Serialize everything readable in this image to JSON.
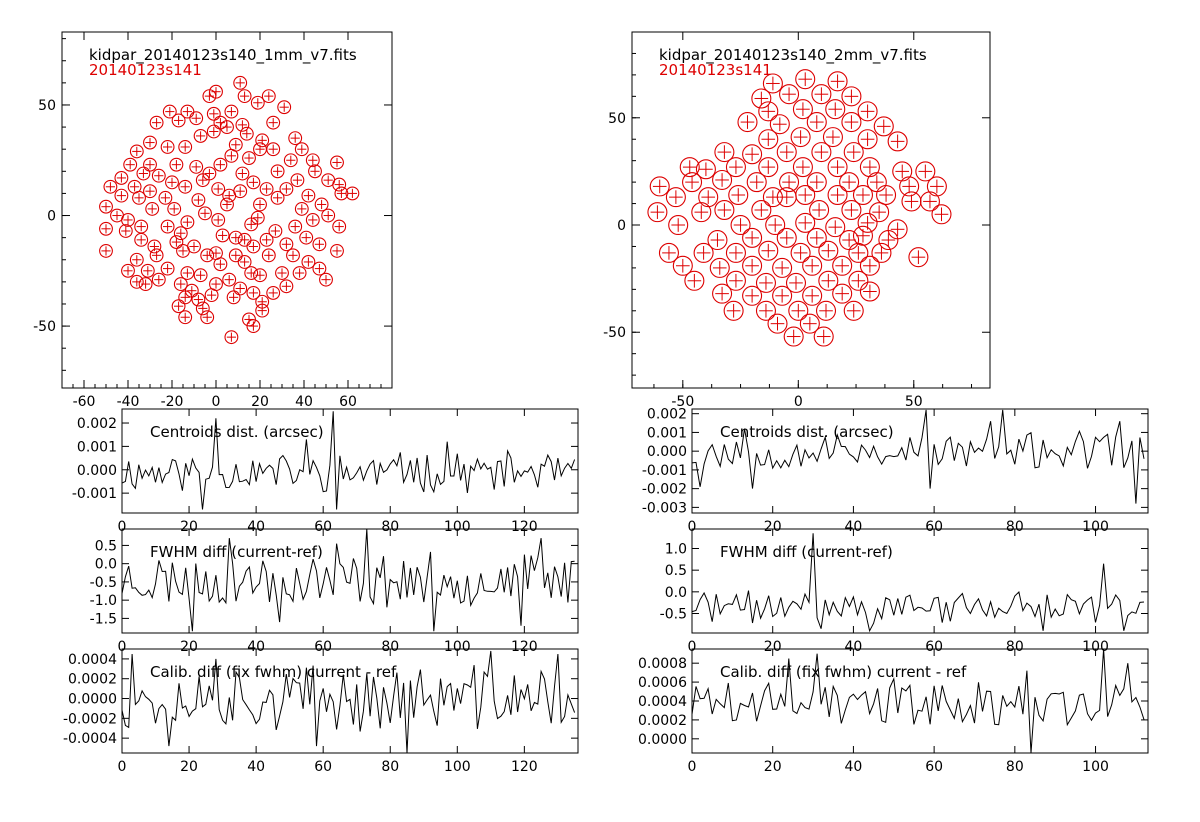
{
  "colors": {
    "axis": "#000000",
    "detector": "#dd0000",
    "line": "#000000",
    "background": "#ffffff"
  },
  "chart_data": [
    {
      "id": "map1",
      "type": "scatter",
      "title": "kidpar_20140123s140_1mm_v7.fits",
      "subtitle": "20140123s141",
      "xlim": [
        -70,
        80
      ],
      "ylim": [
        -78,
        83
      ],
      "xticks": [
        -60,
        -40,
        -20,
        0,
        20,
        40,
        60
      ],
      "yticks": [
        -50,
        0,
        50
      ],
      "marker_radius": 2.9,
      "points": [
        [
          11,
          60
        ],
        [
          0,
          56
        ],
        [
          -3,
          54
        ],
        [
          13,
          54
        ],
        [
          19,
          51
        ],
        [
          24,
          54
        ],
        [
          31,
          49
        ],
        [
          -21,
          47
        ],
        [
          -13,
          47
        ],
        [
          -9,
          44
        ],
        [
          -1,
          46
        ],
        [
          7,
          47
        ],
        [
          -27,
          42
        ],
        [
          -17,
          43
        ],
        [
          2,
          42
        ],
        [
          12,
          41
        ],
        [
          26,
          42
        ],
        [
          -30,
          33
        ],
        [
          -7,
          36
        ],
        [
          -1,
          38
        ],
        [
          5,
          40
        ],
        [
          14,
          37
        ],
        [
          21,
          34
        ],
        [
          36,
          35
        ],
        [
          -36,
          29
        ],
        [
          -22,
          31
        ],
        [
          -14,
          31
        ],
        [
          9,
          32
        ],
        [
          20,
          30
        ],
        [
          26,
          30
        ],
        [
          39,
          30
        ],
        [
          -39,
          23
        ],
        [
          -30,
          23
        ],
        [
          -18,
          23
        ],
        [
          -9,
          22
        ],
        [
          2,
          23
        ],
        [
          7,
          27
        ],
        [
          15,
          26
        ],
        [
          34,
          25
        ],
        [
          44,
          25
        ],
        [
          55,
          24
        ],
        [
          -43,
          17
        ],
        [
          -33,
          19
        ],
        [
          -26,
          18
        ],
        [
          -3,
          19
        ],
        [
          12,
          19
        ],
        [
          28,
          20
        ],
        [
          45,
          20
        ],
        [
          -48,
          13
        ],
        [
          -37,
          13
        ],
        [
          -20,
          15
        ],
        [
          -6,
          16
        ],
        [
          17,
          15
        ],
        [
          37,
          16
        ],
        [
          51,
          16
        ],
        [
          -43,
          9
        ],
        [
          -30,
          11
        ],
        [
          -14,
          13
        ],
        [
          1,
          12
        ],
        [
          23,
          12
        ],
        [
          32,
          12
        ],
        [
          56,
          14
        ],
        [
          -50,
          4
        ],
        [
          -35,
          8
        ],
        [
          -23,
          8
        ],
        [
          -8,
          7
        ],
        [
          6,
          9
        ],
        [
          11,
          11
        ],
        [
          28,
          8
        ],
        [
          42,
          9
        ],
        [
          57,
          10
        ],
        [
          62,
          10
        ],
        [
          -45,
          0
        ],
        [
          -29,
          3
        ],
        [
          -19,
          3
        ],
        [
          -5,
          1
        ],
        [
          5,
          5
        ],
        [
          20,
          5
        ],
        [
          48,
          5
        ],
        [
          -40,
          -2
        ],
        [
          -13,
          -3
        ],
        [
          19,
          -1
        ],
        [
          39,
          3
        ],
        [
          51,
          0
        ],
        [
          -50,
          -6
        ],
        [
          -34,
          -5
        ],
        [
          -22,
          -5
        ],
        [
          1,
          -2
        ],
        [
          16,
          -4
        ],
        [
          36,
          -5
        ],
        [
          44,
          -2
        ],
        [
          56,
          -5
        ],
        [
          -41,
          -7
        ],
        [
          -16,
          -8
        ],
        [
          9,
          -10
        ],
        [
          27,
          -7
        ],
        [
          -34,
          -11
        ],
        [
          -18,
          -12
        ],
        [
          3,
          -9
        ],
        [
          13,
          -11
        ],
        [
          23,
          -11
        ],
        [
          41,
          -10
        ],
        [
          -28,
          -14
        ],
        [
          -10,
          -14
        ],
        [
          17,
          -14
        ],
        [
          32,
          -13
        ],
        [
          47,
          -13
        ],
        [
          -50,
          -16
        ],
        [
          -36,
          -20
        ],
        [
          -15,
          -16
        ],
        [
          0,
          -17
        ],
        [
          9,
          -18
        ],
        [
          24,
          -18
        ],
        [
          55,
          -16
        ],
        [
          -27,
          -18
        ],
        [
          -4,
          -18
        ],
        [
          13,
          -21
        ],
        [
          35,
          -18
        ],
        [
          42,
          -21
        ],
        [
          -40,
          -25
        ],
        [
          -31,
          -25
        ],
        [
          -22,
          -24
        ],
        [
          2,
          -22
        ],
        [
          16,
          -26
        ],
        [
          30,
          -26
        ],
        [
          47,
          -24
        ],
        [
          -36,
          -30
        ],
        [
          -26,
          -29
        ],
        [
          -13,
          -26
        ],
        [
          -7,
          -27
        ],
        [
          6,
          -29
        ],
        [
          20,
          -27
        ],
        [
          38,
          -26
        ],
        [
          50,
          -29
        ],
        [
          -32,
          -31
        ],
        [
          -16,
          -31
        ],
        [
          -11,
          -34
        ],
        [
          0,
          -31
        ],
        [
          11,
          -33
        ],
        [
          32,
          -32
        ],
        [
          -14,
          -37
        ],
        [
          -8,
          -38
        ],
        [
          -2,
          -36
        ],
        [
          8,
          -37
        ],
        [
          17,
          -35
        ],
        [
          26,
          -35
        ],
        [
          -17,
          -41
        ],
        [
          -6,
          -42
        ],
        [
          21,
          -39
        ],
        [
          -14,
          -46
        ],
        [
          -4,
          -46
        ],
        [
          15,
          -47
        ],
        [
          21,
          -43
        ],
        [
          17,
          -50
        ],
        [
          7,
          -55
        ]
      ]
    },
    {
      "id": "map2",
      "type": "scatter",
      "title": "kidpar_20140123s140_2mm_v7.fits",
      "subtitle": "20140123s141",
      "xlim": [
        -72,
        83
      ],
      "ylim": [
        -76,
        90
      ],
      "xticks": [
        -50,
        0,
        50
      ],
      "yticks": [
        -50,
        0,
        50
      ],
      "marker_radius": 4.1,
      "points": [
        [
          3,
          68
        ],
        [
          17,
          67
        ],
        [
          -11,
          66
        ],
        [
          -4,
          61
        ],
        [
          10,
          61
        ],
        [
          23,
          60
        ],
        [
          -16,
          59
        ],
        [
          -13,
          53
        ],
        [
          2,
          54
        ],
        [
          16,
          54
        ],
        [
          30,
          53
        ],
        [
          -22,
          48
        ],
        [
          -8,
          47
        ],
        [
          8,
          48
        ],
        [
          23,
          48
        ],
        [
          37,
          46
        ],
        [
          -13,
          40
        ],
        [
          1,
          41
        ],
        [
          15,
          41
        ],
        [
          30,
          40
        ],
        [
          43,
          39
        ],
        [
          -32,
          34
        ],
        [
          -20,
          33
        ],
        [
          -5,
          34
        ],
        [
          10,
          34
        ],
        [
          24,
          34
        ],
        [
          -27,
          27
        ],
        [
          -13,
          27
        ],
        [
          2,
          27
        ],
        [
          17,
          27
        ],
        [
          31,
          27
        ],
        [
          -47,
          27
        ],
        [
          -40,
          26
        ],
        [
          -33,
          21
        ],
        [
          -18,
          20
        ],
        [
          -4,
          20
        ],
        [
          8,
          20
        ],
        [
          22,
          20
        ],
        [
          34,
          20
        ],
        [
          45,
          25
        ],
        [
          55,
          25
        ],
        [
          -46,
          20
        ],
        [
          -26,
          14
        ],
        [
          -11,
          13
        ],
        [
          3,
          14
        ],
        [
          17,
          14
        ],
        [
          28,
          14
        ],
        [
          38,
          14
        ],
        [
          48,
          18
        ],
        [
          60,
          18
        ],
        [
          -60,
          18
        ],
        [
          -53,
          13
        ],
        [
          -39,
          13
        ],
        [
          -32,
          7
        ],
        [
          -16,
          7
        ],
        [
          -5,
          13
        ],
        [
          9,
          7
        ],
        [
          23,
          7
        ],
        [
          35,
          6
        ],
        [
          49,
          11
        ],
        [
          57,
          11
        ],
        [
          -42,
          6
        ],
        [
          -61,
          6
        ],
        [
          -52,
          0
        ],
        [
          -25,
          0
        ],
        [
          -10,
          0
        ],
        [
          3,
          1
        ],
        [
          16,
          -1
        ],
        [
          30,
          1
        ],
        [
          43,
          -2
        ],
        [
          62,
          5
        ],
        [
          -35,
          -7
        ],
        [
          -20,
          -6
        ],
        [
          -5,
          -6
        ],
        [
          8,
          -6
        ],
        [
          22,
          -7
        ],
        [
          28,
          -5
        ],
        [
          39,
          -7
        ],
        [
          -27,
          -13
        ],
        [
          -13,
          -12
        ],
        [
          1,
          -13
        ],
        [
          13,
          -12
        ],
        [
          26,
          -13
        ],
        [
          36,
          -13
        ],
        [
          52,
          -15
        ],
        [
          -56,
          -13
        ],
        [
          -50,
          -19
        ],
        [
          -41,
          -13
        ],
        [
          -34,
          -20
        ],
        [
          -20,
          -19
        ],
        [
          -7,
          -20
        ],
        [
          6,
          -19
        ],
        [
          19,
          -19
        ],
        [
          31,
          -19
        ],
        [
          -45,
          -26
        ],
        [
          -27,
          -26
        ],
        [
          -14,
          -27
        ],
        [
          -1,
          -27
        ],
        [
          13,
          -26
        ],
        [
          26,
          -26
        ],
        [
          -33,
          -32
        ],
        [
          -20,
          -33
        ],
        [
          -7,
          -33
        ],
        [
          6,
          -33
        ],
        [
          19,
          -32
        ],
        [
          31,
          -31
        ],
        [
          -28,
          -40
        ],
        [
          -14,
          -40
        ],
        [
          0,
          -40
        ],
        [
          12,
          -40
        ],
        [
          24,
          -40
        ],
        [
          -9,
          -46
        ],
        [
          5,
          -46
        ],
        [
          -2,
          -52
        ],
        [
          11,
          -52
        ]
      ]
    },
    {
      "id": "res1a",
      "type": "line",
      "label": "Centroids dist. (arcsec)",
      "xlim": [
        0,
        136
      ],
      "ylim": [
        -0.00185,
        0.0026
      ],
      "xticks": [
        0,
        20,
        40,
        60,
        80,
        100,
        120
      ],
      "ytick_labels": [
        "-0.001",
        "0.000",
        "0.001",
        "0.002"
      ],
      "seed": 11,
      "n": 136,
      "amp": 0.00072,
      "mean": -0.0001,
      "spikes": [
        [
          24,
          -0.0017
        ],
        [
          28,
          0.0022
        ],
        [
          55,
          0.0013
        ],
        [
          63,
          0.0025
        ],
        [
          64,
          -0.0017
        ],
        [
          86,
          0.0004
        ],
        [
          97,
          0.0012
        ]
      ]
    },
    {
      "id": "res1b",
      "type": "line",
      "label": "FWHM diff (current-ref)",
      "xlim": [
        0,
        136
      ],
      "ylim": [
        -1.9,
        0.95
      ],
      "xticks": [
        0,
        20,
        40,
        60,
        80,
        100,
        120
      ],
      "ytick_labels": [
        "-1.5",
        "-1.0",
        "-0.5",
        "0.0",
        "0.5"
      ],
      "seed": 23,
      "n": 136,
      "amp": 0.62,
      "mean": -0.45,
      "spikes": [
        [
          21,
          -1.85
        ],
        [
          32,
          0.7
        ],
        [
          47,
          -1.6
        ],
        [
          64,
          0.55
        ],
        [
          73,
          0.95
        ],
        [
          93,
          -1.85
        ],
        [
          119,
          -1.7
        ],
        [
          125,
          0.7
        ]
      ]
    },
    {
      "id": "res1c",
      "type": "line",
      "label": "Calib. diff (fix fwhm) current - ref",
      "xlim": [
        0,
        136
      ],
      "ylim": [
        -0.00055,
        0.0005
      ],
      "xticks": [
        0,
        20,
        40,
        60,
        80,
        100,
        120
      ],
      "ytick_labels": [
        "-0.0004",
        "-0.0002",
        "0.0000",
        "0.0002",
        "0.0004"
      ],
      "seed": 37,
      "n": 136,
      "amp": 0.00028,
      "mean": 0.0,
      "spikes": [
        [
          3,
          0.00045
        ],
        [
          14,
          -0.00048
        ],
        [
          28,
          0.0004
        ],
        [
          58,
          -0.00048
        ],
        [
          85,
          -0.00055
        ],
        [
          110,
          0.00048
        ],
        [
          130,
          0.00045
        ]
      ]
    },
    {
      "id": "res2a",
      "type": "line",
      "label": "Centroids dist. (arcsec)",
      "xlim": [
        0,
        113
      ],
      "ylim": [
        -0.0033,
        0.00225
      ],
      "xticks": [
        0,
        20,
        40,
        60,
        80,
        100
      ],
      "ytick_labels": [
        "-0.003",
        "-0.002",
        "-0.001",
        "0.000",
        "0.001",
        "0.002"
      ],
      "seed": 53,
      "n": 113,
      "amp": 0.00085,
      "mean": 0.0,
      "spikes": [
        [
          2,
          -0.0019
        ],
        [
          13,
          0.0012
        ],
        [
          15,
          -0.002
        ],
        [
          58,
          0.0022
        ],
        [
          59,
          -0.002
        ],
        [
          74,
          0.0016
        ],
        [
          77,
          0.0022
        ],
        [
          106,
          0.0016
        ],
        [
          110,
          -0.0028
        ]
      ]
    },
    {
      "id": "res2b",
      "type": "line",
      "label": "FWHM diff (current-ref)",
      "xlim": [
        0,
        113
      ],
      "ylim": [
        -0.95,
        1.45
      ],
      "xticks": [
        0,
        20,
        40,
        60,
        80,
        100
      ],
      "ytick_labels": [
        "-0.5",
        "0.0",
        "0.5",
        "1.0"
      ],
      "seed": 71,
      "n": 113,
      "amp": 0.32,
      "mean": -0.35,
      "spikes": [
        [
          30,
          1.35
        ],
        [
          32,
          -0.85
        ],
        [
          44,
          -0.9
        ],
        [
          87,
          -0.9
        ],
        [
          102,
          0.65
        ],
        [
          107,
          -0.9
        ]
      ]
    },
    {
      "id": "res2c",
      "type": "line",
      "label": "Calib. diff (fix fwhm) current - ref",
      "xlim": [
        0,
        113
      ],
      "ylim": [
        -0.00015,
        0.00095
      ],
      "xticks": [
        0,
        20,
        40,
        60,
        80,
        100
      ],
      "ytick_labels": [
        "0.0000",
        "0.0002",
        "0.0004",
        "0.0006",
        "0.0008"
      ],
      "seed": 89,
      "n": 113,
      "amp": 0.00022,
      "mean": 0.00038,
      "spikes": [
        [
          24,
          0.00085
        ],
        [
          31,
          0.0009
        ],
        [
          84,
          -0.00015
        ],
        [
          83,
          0.00072
        ],
        [
          102,
          0.00095
        ],
        [
          108,
          0.0008
        ]
      ]
    }
  ]
}
